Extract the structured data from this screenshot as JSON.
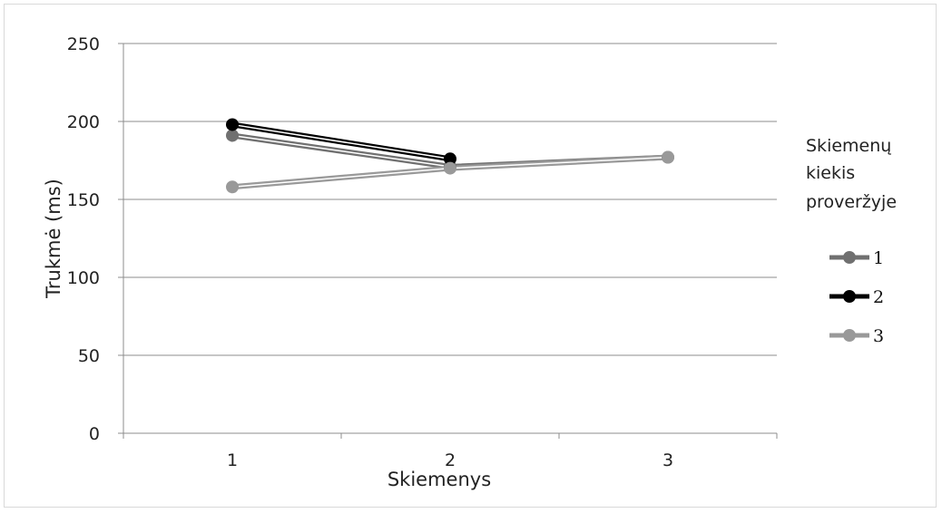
{
  "chart_data": {
    "type": "line",
    "xlabel": "Skiemenys",
    "ylabel": "Trukmė (ms)",
    "ylim": [
      0,
      250
    ],
    "yticks": [
      "0",
      "50",
      "100",
      "150",
      "200",
      "250"
    ],
    "categories": [
      "1",
      "2",
      "3"
    ],
    "grid": true,
    "legend_position": "right",
    "legend_title": [
      "Skiemenų",
      "kiekis",
      "proveržyje"
    ],
    "series": [
      {
        "name": "1",
        "values": [
          191,
          171,
          177
        ],
        "color": "#707070"
      },
      {
        "name": "2",
        "values": [
          198,
          176,
          null
        ],
        "color": "#000000"
      },
      {
        "name": "3",
        "values": [
          158,
          170,
          177
        ],
        "color": "#999999"
      }
    ]
  }
}
